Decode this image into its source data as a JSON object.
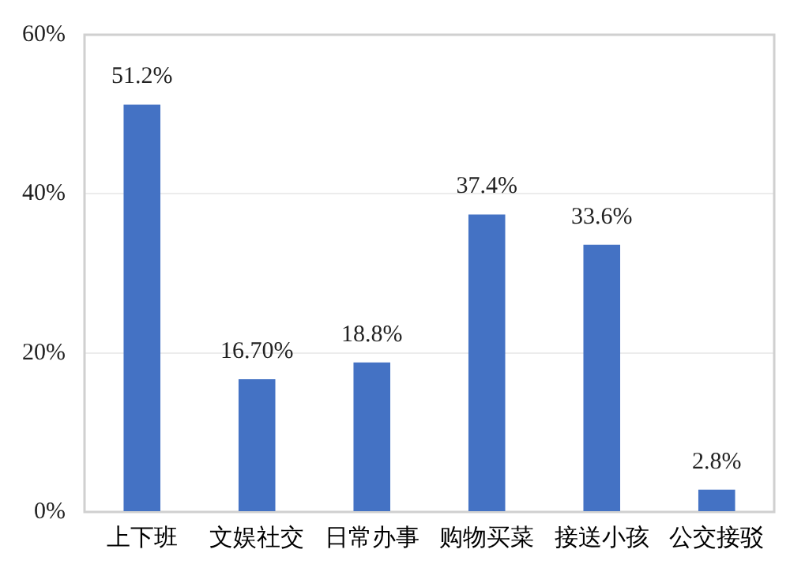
{
  "chart_data": {
    "type": "bar",
    "categories": [
      "上下班",
      "文娱社交",
      "日常办事",
      "购物买菜",
      "接送小孩",
      "公交接驳"
    ],
    "values": [
      51.2,
      16.7,
      18.8,
      37.4,
      33.6,
      2.8
    ],
    "value_labels": [
      "51.2%",
      "16.70%",
      "18.8%",
      "37.4%",
      "33.6%",
      "2.8%"
    ],
    "color": "#4472c4",
    "ylim": [
      0,
      60
    ],
    "yticks": [
      {
        "value": 0,
        "label": "0%"
      },
      {
        "value": 20,
        "label": "20%"
      },
      {
        "value": 40,
        "label": "40%"
      },
      {
        "value": 60,
        "label": "60%"
      }
    ],
    "grid": "y",
    "legend": false
  }
}
